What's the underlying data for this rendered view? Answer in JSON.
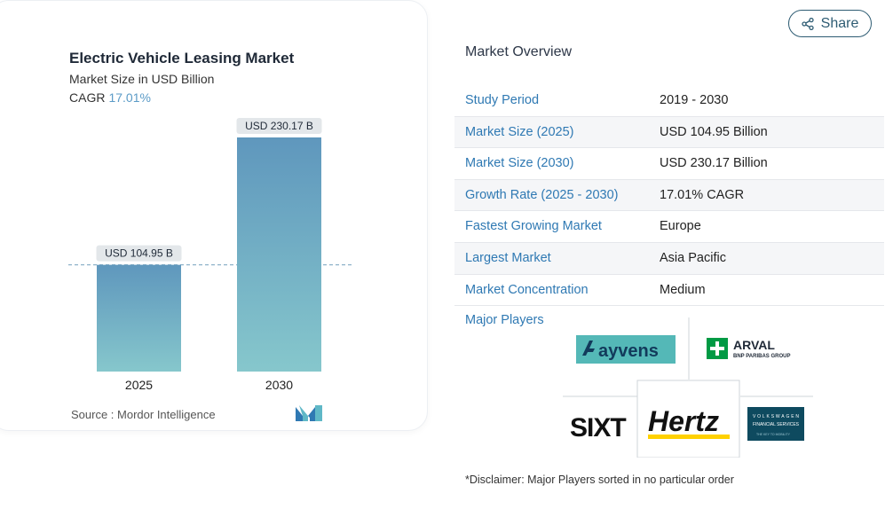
{
  "chart": {
    "title": "Electric Vehicle Leasing Market",
    "subtitle": "Market Size in USD Billion",
    "cagr_label": "CAGR",
    "cagr_value": "17.01%",
    "source": "Source :  Mordor Intelligence"
  },
  "chart_data": {
    "type": "bar",
    "categories": [
      "2025",
      "2030"
    ],
    "values": [
      104.95,
      230.17
    ],
    "data_labels": [
      "USD 104.95 B",
      "USD 230.17 B"
    ],
    "title": "Electric Vehicle Leasing Market",
    "subtitle": "Market Size in USD Billion",
    "ylim": [
      0,
      230.17
    ],
    "grid": false,
    "reference_line_value": 104.95,
    "colors": {
      "bar_top": "#5f97bd",
      "bar_bottom": "#86c7cc",
      "label_bg": "#e3e7ea"
    }
  },
  "share": {
    "label": "Share",
    "icon": "share-icon"
  },
  "overview": {
    "title": "Market Overview",
    "rows": [
      {
        "label": "Study Period",
        "value": "2019 - 2030"
      },
      {
        "label": "Market Size (2025)",
        "value": "USD 104.95 Billion"
      },
      {
        "label": "Market Size (2030)",
        "value": "USD 230.17 Billion"
      },
      {
        "label": "Growth Rate (2025 - 2030)",
        "value": "17.01% CAGR"
      },
      {
        "label": "Fastest Growing Market",
        "value": "Europe"
      },
      {
        "label": "Largest Market",
        "value": "Asia Pacific"
      },
      {
        "label": "Market Concentration",
        "value": "Medium"
      }
    ],
    "players_title": "Major Players",
    "players": [
      "ayvens",
      "ARVAL",
      "SIXT",
      "Hertz",
      "VOLKSWAGEN FINANCIAL SERVICES"
    ],
    "disclaimer": "*Disclaimer: Major Players sorted in no particular order"
  }
}
